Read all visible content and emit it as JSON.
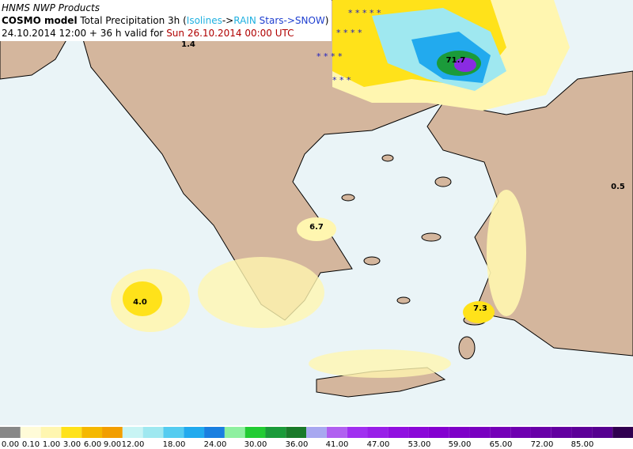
{
  "header": {
    "source": "HNMS NWP Products",
    "title_parts": [
      "COSMO model",
      "Total Precipitation 3h (",
      "Isolines",
      "->",
      "RAIN",
      "Stars->",
      "SNOW",
      ")"
    ],
    "run": "24.10.2014 12:00 + 36 h valid for",
    "valid": "Sun 26.10.2014 00:00 UTC"
  },
  "max_labels": [
    "1.4",
    "6.7",
    "4.0",
    "7.3",
    "0.5",
    "71.7"
  ],
  "legend": {
    "labels": [
      "0.00",
      "0.10",
      "1.00",
      "3.00",
      "6.00",
      "9.00",
      "12.00",
      "18.00",
      "24.00",
      "30.00",
      "36.00",
      "41.00",
      "47.00",
      "53.00",
      "59.00",
      "65.00",
      "72.00",
      "85.00"
    ]
  }
}
